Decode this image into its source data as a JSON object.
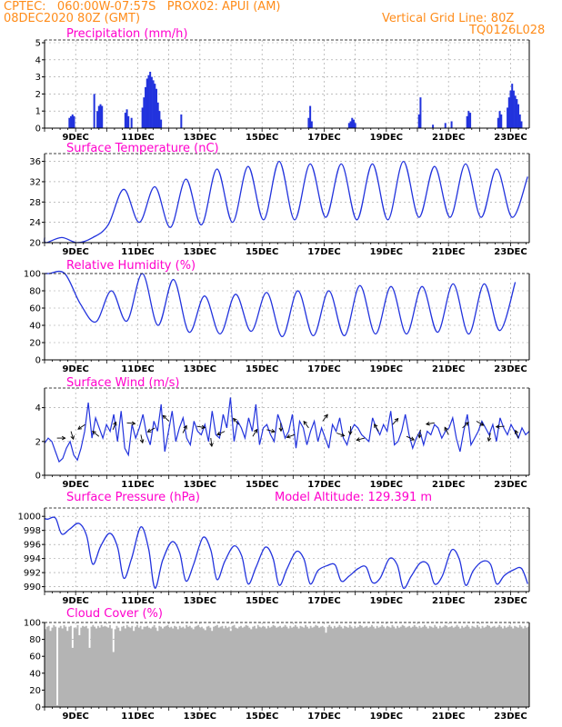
{
  "header": {
    "line1": "CPTEC:   060:00W-07:57S   PROX02: APUI (AM)",
    "line2": "08DEC2020 80Z (GMT)",
    "right1": "Vertical Grid Line: 80Z",
    "right2": "TQ0126L028"
  },
  "colors": {
    "series": "#2233dd",
    "cloud": "#b4b4b4",
    "title": "#ff00cc",
    "header": "#ff8c1a"
  },
  "chart_data": [
    {
      "id": "precip",
      "type": "bar",
      "title": "Precipitation (mm/h)",
      "ylim": [
        0,
        5
      ],
      "yticks": [
        0,
        1,
        2,
        3,
        4,
        5
      ],
      "xticks": [
        "9DEC",
        "11DEC",
        "13DEC",
        "15DEC",
        "17DEC",
        "19DEC",
        "21DEC",
        "23DEC"
      ],
      "x_start": 0.0,
      "x_end": 15.6,
      "bars": [
        [
          0.8,
          0.6
        ],
        [
          0.85,
          0.7
        ],
        [
          0.9,
          0.8
        ],
        [
          0.95,
          0.7
        ],
        [
          1.6,
          2.0
        ],
        [
          1.7,
          1.0
        ],
        [
          1.75,
          1.3
        ],
        [
          1.8,
          1.4
        ],
        [
          1.85,
          1.3
        ],
        [
          2.6,
          0.9
        ],
        [
          2.65,
          1.1
        ],
        [
          2.7,
          0.7
        ],
        [
          2.8,
          0.6
        ],
        [
          3.15,
          1.2
        ],
        [
          3.2,
          1.8
        ],
        [
          3.25,
          2.4
        ],
        [
          3.3,
          2.9
        ],
        [
          3.35,
          3.1
        ],
        [
          3.4,
          3.3
        ],
        [
          3.45,
          3.0
        ],
        [
          3.5,
          2.8
        ],
        [
          3.55,
          2.6
        ],
        [
          3.6,
          2.3
        ],
        [
          3.65,
          1.5
        ],
        [
          3.7,
          1.0
        ],
        [
          3.75,
          0.5
        ],
        [
          4.4,
          0.8
        ],
        [
          8.5,
          0.6
        ],
        [
          8.55,
          1.3
        ],
        [
          8.6,
          0.4
        ],
        [
          9.8,
          0.3
        ],
        [
          9.85,
          0.4
        ],
        [
          9.9,
          0.6
        ],
        [
          9.95,
          0.5
        ],
        [
          10.0,
          0.3
        ],
        [
          12.05,
          0.8
        ],
        [
          12.1,
          1.8
        ],
        [
          12.5,
          0.2
        ],
        [
          12.9,
          0.3
        ],
        [
          13.1,
          0.4
        ],
        [
          13.6,
          0.7
        ],
        [
          13.65,
          1.0
        ],
        [
          13.7,
          0.9
        ],
        [
          14.6,
          0.6
        ],
        [
          14.65,
          1.0
        ],
        [
          14.7,
          0.8
        ],
        [
          14.9,
          1.2
        ],
        [
          14.95,
          1.8
        ],
        [
          15.0,
          2.2
        ],
        [
          15.05,
          2.6
        ],
        [
          15.1,
          2.2
        ],
        [
          15.15,
          1.9
        ],
        [
          15.2,
          1.7
        ],
        [
          15.25,
          1.4
        ],
        [
          15.3,
          0.8
        ],
        [
          15.35,
          0.4
        ]
      ]
    },
    {
      "id": "temp",
      "type": "line",
      "title": "Surface Temperature (nC)",
      "ylim": [
        20,
        37
      ],
      "yticks": [
        20,
        24,
        28,
        32,
        36
      ],
      "xticks": [
        "9DEC",
        "11DEC",
        "13DEC",
        "15DEC",
        "17DEC",
        "19DEC",
        "21DEC",
        "23DEC"
      ],
      "x_start": 0.0,
      "x_end": 15.6,
      "period": 1,
      "base": [
        20.8,
        20.2,
        22.5,
        29.0,
        29.5,
        30.5,
        31.0,
        32.0,
        33.0,
        33.5,
        33.5,
        34.0,
        34.0,
        34.5,
        34.5,
        33.0,
        33.0,
        32.0
      ],
      "min": [
        20.0,
        20.0,
        23.5,
        24.0,
        23.0,
        23.5,
        24.0,
        24.5,
        24.5,
        25.0,
        24.5,
        24.5,
        25.0,
        25.0,
        25.0,
        25.0,
        26.0,
        26.0
      ],
      "max": [
        21.0,
        21.0,
        30.5,
        31.0,
        32.5,
        34.5,
        35.0,
        36.0,
        35.5,
        35.5,
        35.5,
        36.0,
        35.0,
        35.5,
        34.5,
        33.0,
        30.5,
        29.5
      ]
    },
    {
      "id": "rh",
      "type": "line",
      "title": "Relative Humidity (%)",
      "ylim": [
        0,
        100
      ],
      "yticks": [
        0,
        20,
        40,
        60,
        80,
        100
      ],
      "xticks": [
        "9DEC",
        "11DEC",
        "13DEC",
        "15DEC",
        "17DEC",
        "19DEC",
        "21DEC",
        "23DEC"
      ],
      "x_start": 0.0,
      "x_end": 15.6,
      "min": [
        100,
        44,
        45,
        40,
        32,
        30,
        33,
        27,
        28,
        28,
        30,
        30,
        32,
        30,
        34,
        37,
        50
      ],
      "max": [
        100,
        65,
        80,
        100,
        93,
        74,
        76,
        78,
        80,
        80,
        86,
        85,
        85,
        88,
        88,
        90,
        92
      ]
    },
    {
      "id": "wind",
      "type": "line",
      "title": "Surface Wind (m/s)",
      "ylim": [
        0,
        5
      ],
      "yticks": [
        0,
        2,
        4
      ],
      "xticks": [
        "9DEC",
        "11DEC",
        "13DEC",
        "15DEC",
        "17DEC",
        "19DEC",
        "21DEC",
        "23DEC"
      ],
      "x_start": 0.0,
      "x_end": 15.6,
      "values": [
        1.9,
        2.2,
        2.0,
        1.4,
        0.8,
        1.0,
        1.6,
        2.0,
        1.2,
        0.9,
        1.6,
        2.6,
        4.3,
        2.2,
        3.4,
        2.8,
        2.2,
        3.0,
        2.6,
        3.6,
        2.0,
        3.8,
        1.6,
        1.2,
        3.0,
        2.2,
        2.8,
        3.6,
        2.4,
        1.8,
        3.2,
        2.6,
        4.2,
        1.4,
        2.6,
        3.8,
        2.0,
        2.8,
        3.4,
        2.2,
        1.8,
        3.2,
        2.6,
        2.4,
        3.0,
        2.0,
        3.8,
        2.4,
        2.2,
        3.6,
        2.8,
        4.6,
        2.0,
        3.2,
        2.8,
        2.2,
        3.4,
        2.6,
        4.2,
        1.8,
        2.8,
        3.0,
        2.4,
        2.0,
        3.6,
        3.0,
        2.2,
        2.6,
        3.6,
        1.6,
        3.2,
        2.8,
        1.8,
        2.6,
        3.2,
        2.0,
        2.8,
        2.2,
        1.6,
        3.0,
        2.6,
        3.4,
        2.2,
        1.8,
        2.6,
        3.0,
        2.8,
        2.4,
        2.2,
        2.0,
        3.4,
        2.8,
        2.4,
        3.0,
        2.6,
        3.8,
        1.8,
        2.0,
        2.6,
        3.6,
        2.4,
        1.6,
        2.2,
        2.6,
        1.8,
        2.6,
        2.4,
        3.0,
        2.8,
        2.2,
        2.6,
        2.8,
        3.4,
        2.2,
        1.4,
        2.6,
        3.6,
        1.8,
        2.2,
        2.6,
        3.2,
        2.8,
        2.4,
        3.0,
        2.0,
        3.4,
        2.8,
        2.4,
        3.0,
        2.6,
        2.2,
        2.8,
        2.4,
        2.6
      ]
    },
    {
      "id": "press",
      "type": "line",
      "title": "Surface Pressure (hPa)",
      "annotation": "Model Altitude: 129.391 m",
      "ylim": [
        989.3,
        1000.8
      ],
      "yticks": [
        990,
        992,
        994,
        996,
        998,
        1000
      ],
      "xticks": [
        "9DEC",
        "11DEC",
        "13DEC",
        "15DEC",
        "17DEC",
        "19DEC",
        "21DEC",
        "23DEC"
      ],
      "x_start": 0.0,
      "x_end": 15.6,
      "hi": [
        999.6,
        999.0,
        997.6,
        998.5,
        996.4,
        997.0,
        995.8,
        995.6,
        995.0,
        993.0,
        992.6,
        994.0,
        993.4,
        995.2,
        993.6,
        992.4,
        992.8
      ],
      "lo": [
        997.5,
        993.2,
        991.2,
        989.8,
        990.8,
        991.0,
        990.4,
        990.2,
        990.4,
        990.8,
        990.6,
        989.8,
        990.4,
        990.2,
        990.4,
        990.4,
        990.8
      ]
    },
    {
      "id": "cloud",
      "type": "area",
      "title": "Cloud Cover (%)",
      "ylim": [
        0,
        100
      ],
      "yticks": [
        0,
        20,
        40,
        60,
        80,
        100
      ],
      "xticks": [
        "9DEC",
        "11DEC",
        "13DEC",
        "15DEC",
        "17DEC",
        "19DEC",
        "21DEC",
        "23DEC"
      ],
      "x_start": 0.0,
      "x_end": 15.6,
      "values": [
        92,
        95,
        96,
        90,
        94,
        97,
        95,
        2,
        94,
        96,
        93,
        97,
        95,
        90,
        95,
        96,
        70,
        94,
        93,
        97,
        85,
        94,
        96,
        95,
        96,
        93,
        70,
        95,
        97,
        95,
        93,
        96,
        94,
        97,
        95,
        96,
        95,
        94,
        97,
        93,
        65,
        92,
        96,
        94,
        90,
        95,
        96,
        93,
        97,
        95,
        94,
        96,
        90,
        95,
        97,
        94,
        96,
        92,
        95,
        95,
        96,
        94,
        93,
        95,
        97,
        94,
        90,
        96,
        95,
        93,
        95,
        96,
        97,
        94,
        95,
        93,
        96,
        95,
        92,
        96,
        94,
        95,
        93,
        97,
        95,
        96,
        94,
        92,
        95,
        96,
        97,
        94,
        95,
        93,
        91,
        95,
        96,
        94,
        90,
        95,
        96,
        97,
        94,
        95,
        96,
        93,
        96,
        94,
        95,
        90,
        96,
        97,
        94,
        93,
        95,
        96,
        94,
        95,
        97,
        96,
        94,
        92,
        95,
        96,
        93,
        97,
        95,
        94,
        96,
        95,
        93,
        96,
        94,
        95,
        97,
        96,
        94,
        95,
        96,
        94,
        95,
        97,
        95,
        93,
        96,
        94,
        95,
        97,
        95,
        93,
        96,
        95,
        94,
        97,
        95,
        93,
        96,
        94,
        95,
        97,
        96,
        94,
        95,
        96,
        94,
        88,
        95,
        97,
        95,
        93,
        96,
        94,
        95,
        97,
        95,
        93,
        96,
        95,
        94,
        97,
        95,
        93,
        96,
        94,
        95,
        97,
        96,
        94,
        95,
        96,
        94,
        95,
        97,
        95,
        93,
        96,
        94,
        95,
        97,
        95,
        93,
        96,
        95,
        94,
        97,
        95,
        93,
        96,
        94,
        95,
        97,
        96,
        94,
        95,
        96,
        94,
        95,
        97,
        95,
        93,
        96,
        94,
        95,
        97,
        95,
        93,
        96,
        95,
        94,
        97,
        95,
        93,
        96,
        94,
        95,
        97,
        96,
        94,
        95,
        96,
        94,
        95,
        97,
        95,
        93,
        96,
        94,
        95,
        97,
        95,
        93,
        96,
        95,
        94,
        97,
        95,
        93,
        96,
        94,
        95,
        97,
        96,
        94,
        95,
        96,
        94,
        95,
        97,
        95,
        93,
        96,
        94,
        95,
        97,
        95,
        93,
        96,
        95,
        94,
        97,
        95,
        93,
        96,
        94,
        95
      ]
    }
  ]
}
